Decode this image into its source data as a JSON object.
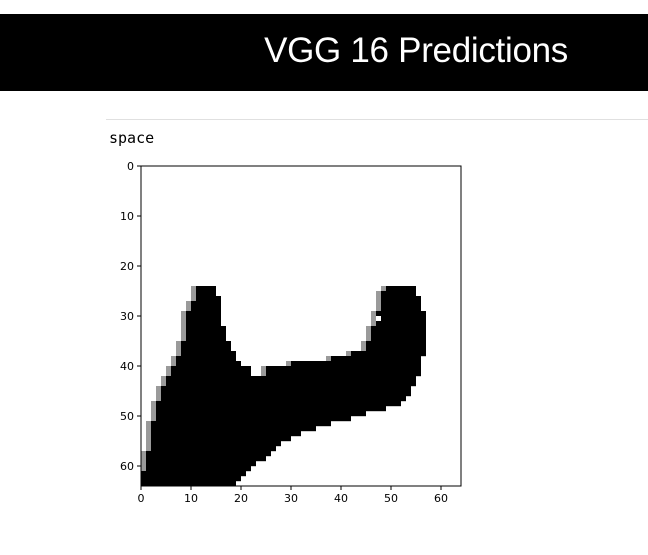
{
  "banner": {
    "title": "VGG 16 Predictions",
    "background": "#000000",
    "text_color": "#ffffff"
  },
  "output_cell": {
    "label": "space"
  },
  "chart_data": {
    "type": "heatmap",
    "title": "space",
    "colormap": "binary",
    "grid": false,
    "xlim": [
      0,
      64
    ],
    "ylim": [
      64,
      0
    ],
    "x_ticks": [
      0,
      10,
      20,
      30,
      40,
      50,
      60
    ],
    "y_ticks": [
      0,
      10,
      20,
      30,
      40,
      50,
      60
    ],
    "image_size": [
      64,
      64
    ],
    "description_shape_rows": [
      {
        "row": 24,
        "segments": [
          [
            11,
            15
          ],
          [
            49,
            55
          ]
        ]
      },
      {
        "row": 25,
        "segments": [
          [
            11,
            15
          ],
          [
            48,
            55
          ]
        ]
      },
      {
        "row": 27,
        "segments": [
          [
            10,
            16
          ],
          [
            48,
            56
          ]
        ]
      },
      {
        "row": 30,
        "segments": [
          [
            9,
            16
          ],
          [
            47,
            57
          ]
        ]
      },
      {
        "row": 33,
        "segments": [
          [
            9,
            17
          ],
          [
            46,
            57
          ]
        ]
      },
      {
        "row": 36,
        "segments": [
          [
            8,
            18
          ],
          [
            45,
            57
          ]
        ]
      },
      {
        "row": 38,
        "segments": [
          [
            7,
            19
          ],
          [
            38,
            56
          ]
        ]
      },
      {
        "row": 39,
        "segments": [
          [
            7,
            20
          ],
          [
            30,
            56
          ]
        ]
      },
      {
        "row": 40,
        "segments": [
          [
            6,
            22
          ],
          [
            25,
            56
          ]
        ]
      },
      {
        "row": 42,
        "segments": [
          [
            5,
            55
          ]
        ]
      },
      {
        "row": 45,
        "segments": [
          [
            4,
            54
          ]
        ]
      },
      {
        "row": 47,
        "segments": [
          [
            3,
            52
          ]
        ]
      },
      {
        "row": 49,
        "segments": [
          [
            3,
            45
          ]
        ]
      },
      {
        "row": 51,
        "segments": [
          [
            2,
            38
          ]
        ]
      },
      {
        "row": 53,
        "segments": [
          [
            2,
            32
          ]
        ]
      },
      {
        "row": 55,
        "segments": [
          [
            2,
            28
          ]
        ]
      },
      {
        "row": 57,
        "segments": [
          [
            1,
            26
          ]
        ]
      },
      {
        "row": 59,
        "segments": [
          [
            1,
            23
          ]
        ]
      },
      {
        "row": 61,
        "segments": [
          [
            0,
            21
          ]
        ]
      },
      {
        "row": 63,
        "segments": [
          [
            0,
            19
          ]
        ]
      }
    ]
  }
}
